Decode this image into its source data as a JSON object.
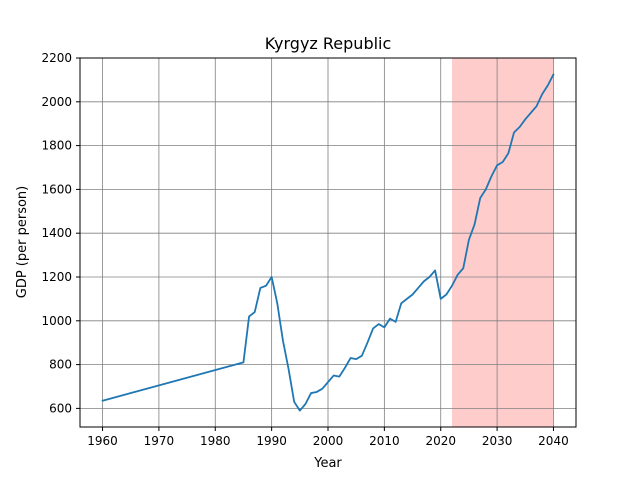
{
  "chart_data": {
    "type": "line",
    "title": "Kyrgyz Republic",
    "xlabel": "Year",
    "ylabel": "GDP (per person)",
    "xlim": [
      1956,
      2044
    ],
    "ylim": [
      515,
      2200
    ],
    "xticks": [
      1960,
      1970,
      1980,
      1990,
      2000,
      2010,
      2020,
      2030,
      2040
    ],
    "yticks": [
      600,
      800,
      1000,
      1200,
      1400,
      1600,
      1800,
      2000,
      2200
    ],
    "grid": true,
    "shaded_region": {
      "x_start": 2022,
      "x_end": 2040,
      "color": "#ffcccc"
    },
    "series": [
      {
        "color": "#1f77b4",
        "x": [
          1960,
          1985,
          1986,
          1987,
          1988,
          1989,
          1990,
          1991,
          1992,
          1993,
          1994,
          1995,
          1996,
          1997,
          1998,
          1999,
          2000,
          2001,
          2002,
          2003,
          2004,
          2005,
          2006,
          2007,
          2008,
          2009,
          2010,
          2011,
          2012,
          2013,
          2014,
          2015,
          2016,
          2017,
          2018,
          2019,
          2020,
          2021,
          2022,
          2023,
          2024,
          2025,
          2026,
          2027,
          2028,
          2029,
          2030,
          2031,
          2032,
          2033,
          2034,
          2035,
          2036,
          2037,
          2038,
          2039,
          2040
        ],
        "y": [
          635,
          810,
          1020,
          1040,
          1150,
          1160,
          1200,
          1080,
          910,
          780,
          630,
          590,
          620,
          670,
          675,
          690,
          720,
          750,
          745,
          785,
          830,
          825,
          840,
          900,
          965,
          985,
          970,
          1010,
          995,
          1080,
          1100,
          1120,
          1150,
          1180,
          1200,
          1230,
          1100,
          1120,
          1160,
          1210,
          1240,
          1370,
          1440,
          1560,
          1600,
          1660,
          1710,
          1725,
          1765,
          1860,
          1885,
          1920,
          1950,
          1980,
          2035,
          2075,
          2125
        ]
      }
    ]
  }
}
